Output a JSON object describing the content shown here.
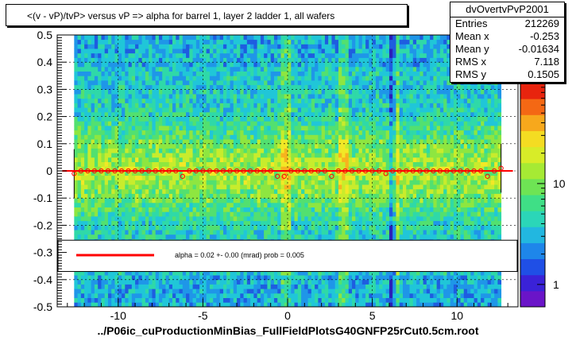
{
  "title": "<(v - vP)/tvP> versus   vP => alpha for barrel 1, layer 2 ladder 1, all wafers",
  "stats": {
    "name": "dvOvertvPvP2001",
    "rows": [
      {
        "label": "Entries",
        "value": "212269"
      },
      {
        "label": "Mean x",
        "value": "-0.253"
      },
      {
        "label": "Mean y",
        "value": "-0.01634"
      },
      {
        "label": "RMS x",
        "value": "7.118"
      },
      {
        "label": "RMS y",
        "value": "0.1505"
      }
    ]
  },
  "fit_legend": "alpha =     0.02 +-  0.00 (mrad) prob = 0.005",
  "footer": "../P06ic_cuProductionMinBias_FullFieldPlotsG40GNFP25rCut0.5cm.root",
  "colors": {
    "fit_line": "#ff0000",
    "marker": "#ff0000",
    "frame": "#000000"
  },
  "chart_data": {
    "type": "heatmap",
    "xlim": [
      -13.6,
      13.6
    ],
    "ylim": [
      -0.5,
      0.5
    ],
    "xticks": [
      -10,
      -5,
      0,
      5,
      10
    ],
    "yticks": [
      -0.5,
      -0.4,
      -0.3,
      -0.2,
      -0.1,
      0,
      0.1,
      0.2,
      0.3,
      0.4,
      0.5
    ],
    "ytick_labels": [
      "-0.5",
      "-0.4",
      "-0.3",
      "-0.2",
      "-0.1",
      "0",
      "0.1",
      "0.2",
      "0.3",
      "0.4",
      "0.5"
    ],
    "xtick_labels": [
      "-10",
      "-5",
      "0",
      "5",
      "10"
    ],
    "grid": true,
    "colorbar": {
      "scale": "log",
      "ticks": [
        1,
        10
      ],
      "tick_labels": [
        "1",
        "10"
      ],
      "range": [
        0.6,
        100
      ]
    },
    "fit_line": {
      "slope_mrad": 0.02,
      "y_at_zero": 0.0
    },
    "profile_points": {
      "x": [
        -12.6,
        -12.2,
        -11.8,
        -11.4,
        -11.0,
        -10.6,
        -10.2,
        -9.8,
        -9.4,
        -9.0,
        -8.6,
        -8.2,
        -7.8,
        -7.4,
        -7.0,
        -6.6,
        -6.2,
        -5.8,
        -5.4,
        -5.0,
        -4.6,
        -4.2,
        -3.8,
        -3.4,
        -3.0,
        -2.6,
        -2.2,
        -1.8,
        -1.4,
        -1.0,
        -0.6,
        -0.2,
        0.2,
        0.6,
        1.0,
        1.4,
        1.8,
        2.2,
        2.6,
        3.0,
        3.4,
        3.8,
        4.2,
        4.6,
        5.0,
        5.4,
        5.8,
        6.2,
        6.6,
        7.0,
        7.4,
        7.8,
        8.2,
        8.6,
        9.0,
        9.4,
        9.8,
        10.2,
        10.6,
        11.0,
        11.4,
        11.8,
        12.2,
        12.6
      ],
      "y": [
        -0.01,
        0.0,
        0.0,
        0.0,
        0.0,
        0.0,
        0.0,
        0.0,
        0.0,
        0.0,
        0.0,
        0.0,
        0.0,
        0.0,
        0.0,
        0.0,
        -0.02,
        0.0,
        0.0,
        0.0,
        0.0,
        0.0,
        0.0,
        0.0,
        0.0,
        0.0,
        0.0,
        0.0,
        0.0,
        0.0,
        -0.02,
        -0.02,
        0.0,
        0.0,
        0.0,
        0.0,
        0.0,
        0.0,
        -0.02,
        0.0,
        0.0,
        0.0,
        0.0,
        0.0,
        0.0,
        0.0,
        -0.01,
        0.0,
        0.0,
        0.0,
        0.0,
        0.0,
        0.0,
        0.0,
        0.0,
        0.0,
        0.0,
        0.0,
        0.0,
        0.0,
        0.0,
        -0.02,
        0.0,
        0.01
      ]
    }
  }
}
